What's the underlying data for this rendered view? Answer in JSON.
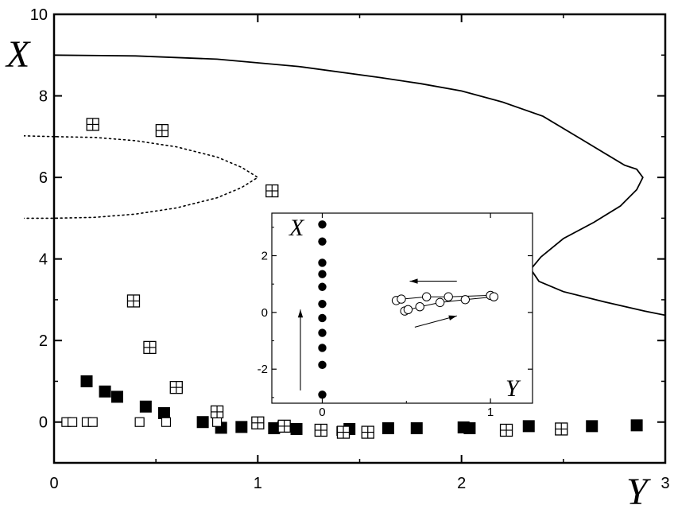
{
  "chart_data": [
    {
      "type": "scatter",
      "title": "",
      "xlabel": "Y",
      "ylabel": "X",
      "xlim": [
        0,
        3
      ],
      "ylim": [
        -1,
        10
      ],
      "x_ticks": [
        0,
        1,
        2,
        3
      ],
      "y_ticks": [
        0,
        2,
        4,
        6,
        8,
        10
      ],
      "x_tick_labels": [
        "0",
        "1",
        "2",
        "3"
      ],
      "y_tick_labels": [
        "0",
        "2",
        "4",
        "6",
        "8",
        "10"
      ],
      "grid": false,
      "legend": "none",
      "colors": {
        "ink": "#000000",
        "paper": "#ffffff"
      },
      "series": [
        {
          "marker": "filled-square",
          "points": [
            {
              "x": 0.16,
              "y": 1.0
            },
            {
              "x": 0.25,
              "y": 0.75
            },
            {
              "x": 0.31,
              "y": 0.62
            },
            {
              "x": 0.45,
              "y": 0.38
            },
            {
              "x": 0.54,
              "y": 0.22
            },
            {
              "x": 0.73,
              "y": 0.0
            },
            {
              "x": 0.82,
              "y": -0.14
            },
            {
              "x": 0.92,
              "y": -0.12
            },
            {
              "x": 1.08,
              "y": -0.15
            },
            {
              "x": 1.19,
              "y": -0.17
            },
            {
              "x": 1.45,
              "y": -0.17
            },
            {
              "x": 1.64,
              "y": -0.15
            },
            {
              "x": 1.78,
              "y": -0.15
            },
            {
              "x": 2.01,
              "y": -0.13
            },
            {
              "x": 2.04,
              "y": -0.15
            },
            {
              "x": 2.33,
              "y": -0.1
            },
            {
              "x": 2.64,
              "y": -0.1
            },
            {
              "x": 2.86,
              "y": -0.08
            }
          ]
        },
        {
          "marker": "open-square",
          "points": [
            {
              "x": 0.06,
              "y": 0.0
            },
            {
              "x": 0.09,
              "y": 0.0
            },
            {
              "x": 0.16,
              "y": 0.0
            },
            {
              "x": 0.19,
              "y": 0.0
            },
            {
              "x": 0.42,
              "y": 0.0
            },
            {
              "x": 0.55,
              "y": 0.0
            },
            {
              "x": 0.8,
              "y": 0.0
            },
            {
              "x": 1.0,
              "y": 0.0
            },
            {
              "x": 1.12,
              "y": -0.1
            },
            {
              "x": 1.41,
              "y": -0.22
            }
          ]
        },
        {
          "marker": "crossed-square",
          "points": [
            {
              "x": 0.19,
              "y": 7.3
            },
            {
              "x": 0.53,
              "y": 7.15
            },
            {
              "x": 1.07,
              "y": 5.67
            },
            {
              "x": 0.39,
              "y": 2.97
            },
            {
              "x": 0.47,
              "y": 1.83
            },
            {
              "x": 0.6,
              "y": 0.85
            },
            {
              "x": 0.8,
              "y": 0.25
            },
            {
              "x": 1.0,
              "y": -0.02
            },
            {
              "x": 1.13,
              "y": -0.1
            },
            {
              "x": 1.31,
              "y": -0.2
            },
            {
              "x": 1.42,
              "y": -0.25
            },
            {
              "x": 1.54,
              "y": -0.25
            },
            {
              "x": 2.22,
              "y": -0.2
            },
            {
              "x": 2.49,
              "y": -0.17
            }
          ]
        }
      ],
      "curves": [
        {
          "style": "solid",
          "points": [
            {
              "x": 0.0,
              "y": 9.0
            },
            {
              "x": 0.4,
              "y": 8.98
            },
            {
              "x": 0.8,
              "y": 8.9
            },
            {
              "x": 1.2,
              "y": 8.72
            },
            {
              "x": 1.6,
              "y": 8.45
            },
            {
              "x": 1.8,
              "y": 8.3
            },
            {
              "x": 2.0,
              "y": 8.12
            },
            {
              "x": 2.2,
              "y": 7.85
            },
            {
              "x": 2.4,
              "y": 7.5
            },
            {
              "x": 2.6,
              "y": 6.9
            },
            {
              "x": 2.8,
              "y": 6.3
            },
            {
              "x": 2.86,
              "y": 6.2
            },
            {
              "x": 2.89,
              "y": 6.0
            },
            {
              "x": 2.86,
              "y": 5.7
            },
            {
              "x": 2.78,
              "y": 5.3
            },
            {
              "x": 2.65,
              "y": 4.9
            },
            {
              "x": 2.5,
              "y": 4.5
            },
            {
              "x": 2.39,
              "y": 4.05
            },
            {
              "x": 2.34,
              "y": 3.75
            },
            {
              "x": 2.38,
              "y": 3.45
            },
            {
              "x": 2.5,
              "y": 3.2
            },
            {
              "x": 2.7,
              "y": 2.95
            },
            {
              "x": 2.9,
              "y": 2.72
            },
            {
              "x": 3.0,
              "y": 2.62
            }
          ]
        },
        {
          "style": "dotted",
          "points": [
            {
              "x": -0.15,
              "y": 7.02
            },
            {
              "x": 0.0,
              "y": 7.0
            },
            {
              "x": 0.2,
              "y": 6.98
            },
            {
              "x": 0.4,
              "y": 6.9
            },
            {
              "x": 0.6,
              "y": 6.75
            },
            {
              "x": 0.8,
              "y": 6.5
            },
            {
              "x": 0.92,
              "y": 6.25
            },
            {
              "x": 1.0,
              "y": 6.0
            },
            {
              "x": 0.92,
              "y": 5.75
            },
            {
              "x": 0.8,
              "y": 5.5
            },
            {
              "x": 0.6,
              "y": 5.25
            },
            {
              "x": 0.4,
              "y": 5.1
            },
            {
              "x": 0.2,
              "y": 5.02
            },
            {
              "x": 0.0,
              "y": 5.0
            },
            {
              "x": -0.15,
              "y": 5.0
            }
          ]
        }
      ]
    },
    {
      "type": "scatter",
      "title": "",
      "xlabel": "Y",
      "ylabel": "X",
      "xlim": [
        -0.3,
        1.25
      ],
      "ylim": [
        -3.2,
        3.5
      ],
      "x_ticks": [
        0,
        1
      ],
      "y_ticks": [
        -2,
        0,
        2
      ],
      "x_tick_labels": [
        "0",
        "1"
      ],
      "y_tick_labels": [
        "-2",
        "0",
        "2"
      ],
      "grid": false,
      "legend": "none",
      "series": [
        {
          "marker": "filled-circle",
          "points": [
            {
              "x": 0,
              "y": 3.1
            },
            {
              "x": 0,
              "y": 2.5
            },
            {
              "x": 0,
              "y": 1.75
            },
            {
              "x": 0,
              "y": 1.35
            },
            {
              "x": 0,
              "y": 0.9
            },
            {
              "x": 0,
              "y": 0.3
            },
            {
              "x": 0,
              "y": -0.2
            },
            {
              "x": 0,
              "y": -0.72
            },
            {
              "x": 0,
              "y": -1.25
            },
            {
              "x": 0,
              "y": -1.85
            },
            {
              "x": 0,
              "y": -2.9
            }
          ]
        },
        {
          "marker": "open-circle",
          "connected": true,
          "points": [
            {
              "x": 0.44,
              "y": 0.42
            },
            {
              "x": 0.47,
              "y": 0.47
            },
            {
              "x": 0.62,
              "y": 0.55
            },
            {
              "x": 0.75,
              "y": 0.55
            },
            {
              "x": 1.0,
              "y": 0.6
            },
            {
              "x": 1.02,
              "y": 0.55
            },
            {
              "x": 0.85,
              "y": 0.45
            },
            {
              "x": 0.7,
              "y": 0.35
            },
            {
              "x": 0.58,
              "y": 0.2
            },
            {
              "x": 0.49,
              "y": 0.05
            },
            {
              "x": 0.51,
              "y": 0.1
            }
          ]
        }
      ],
      "arrows": [
        {
          "from": {
            "x": -0.13,
            "y": -2.75
          },
          "to": {
            "x": -0.13,
            "y": 0.1
          }
        },
        {
          "from": {
            "x": 0.8,
            "y": 1.1
          },
          "to": {
            "x": 0.52,
            "y": 1.1
          }
        },
        {
          "from": {
            "x": 0.55,
            "y": -0.52
          },
          "to": {
            "x": 0.8,
            "y": -0.12
          }
        }
      ]
    }
  ]
}
